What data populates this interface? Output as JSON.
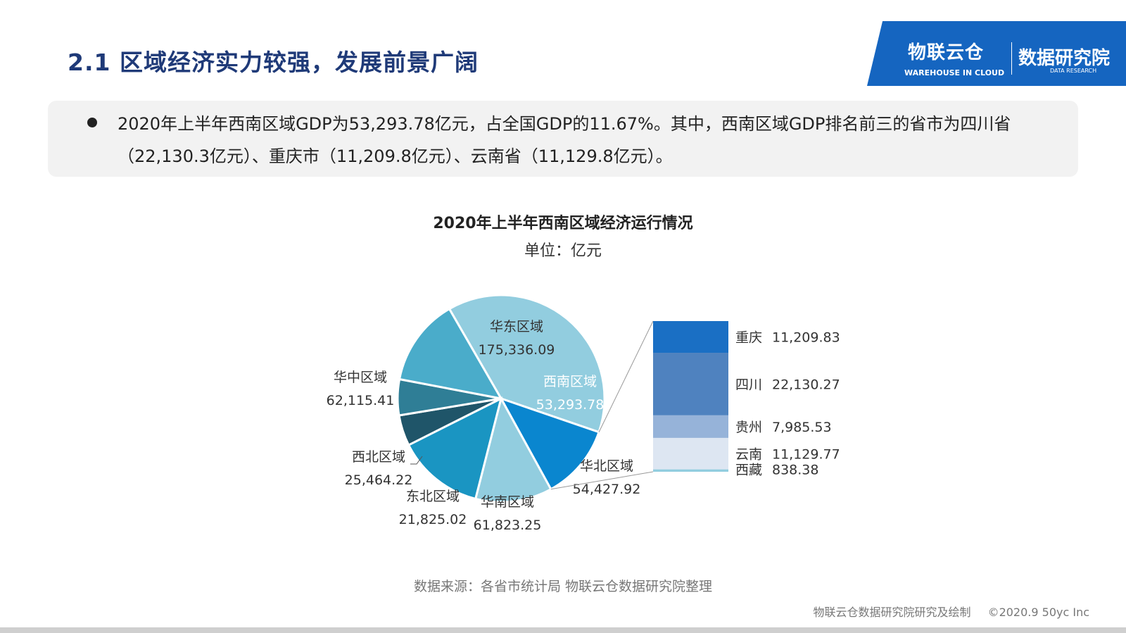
{
  "slide": {
    "title": "2.1 区域经济实力较强，发展前景广阔",
    "bullet_text": "2020年上半年西南区域GDP为53,293.78亿元，占全国GDP的11.67%。其中，西南区域GDP排名前三的省市为四川省（22,130.3亿元）、重庆市（11,209.8亿元）、云南省（11,129.8亿元）。",
    "source": "数据来源：各省市统计局 物联云仓数据研究院整理",
    "footer_left": "物联云仓数据研究院研究及绘制",
    "footer_right": "©2020.9 50yc Inc"
  },
  "brand": {
    "left_name": "物联云仓",
    "left_sub": "WAREHOUSE IN CLOUD",
    "right_name": "数据研究院",
    "right_sub": "DATA RESEARCH"
  },
  "chart_data": {
    "type": "pie",
    "title": "2020年上半年西南区域经济运行情况",
    "subtitle": "单位：亿元",
    "pie": {
      "slices": [
        {
          "label": "华东区域",
          "value": 175336.09,
          "display": "175,336.09",
          "color": "#92cddf"
        },
        {
          "label": "西南区域",
          "value": 53293.78,
          "display": "53,293.78",
          "color": "#0a86cf"
        },
        {
          "label": "华北区域",
          "value": 54427.92,
          "display": "54,427.92",
          "color": "#92cddf"
        },
        {
          "label": "华南区域",
          "value": 61823.25,
          "display": "61,823.25",
          "color": "#1a95c2"
        },
        {
          "label": "东北区域",
          "value": 21825.02,
          "display": "21,825.02",
          "color": "#1f5569"
        },
        {
          "label": "西北区域",
          "value": 25464.22,
          "display": "25,464.22",
          "color": "#2f7e96"
        },
        {
          "label": "华中区域",
          "value": 62115.41,
          "display": "62,115.41",
          "color": "#4aacca"
        }
      ]
    },
    "stack": {
      "title": "西南区域",
      "items": [
        {
          "label": "重庆",
          "value": 11209.83,
          "display": "11,209.83",
          "color": "#1a6fc4"
        },
        {
          "label": "四川",
          "value": 22130.27,
          "display": "22,130.27",
          "color": "#4f82bf"
        },
        {
          "label": "贵州",
          "value": 7985.53,
          "display": "7,985.53",
          "color": "#96b3d9"
        },
        {
          "label": "云南",
          "value": 11129.77,
          "display": "11,129.77",
          "color": "#dde6f2"
        },
        {
          "label": "西藏",
          "value": 838.38,
          "display": "838.38",
          "color": "#92cddf"
        }
      ]
    }
  }
}
